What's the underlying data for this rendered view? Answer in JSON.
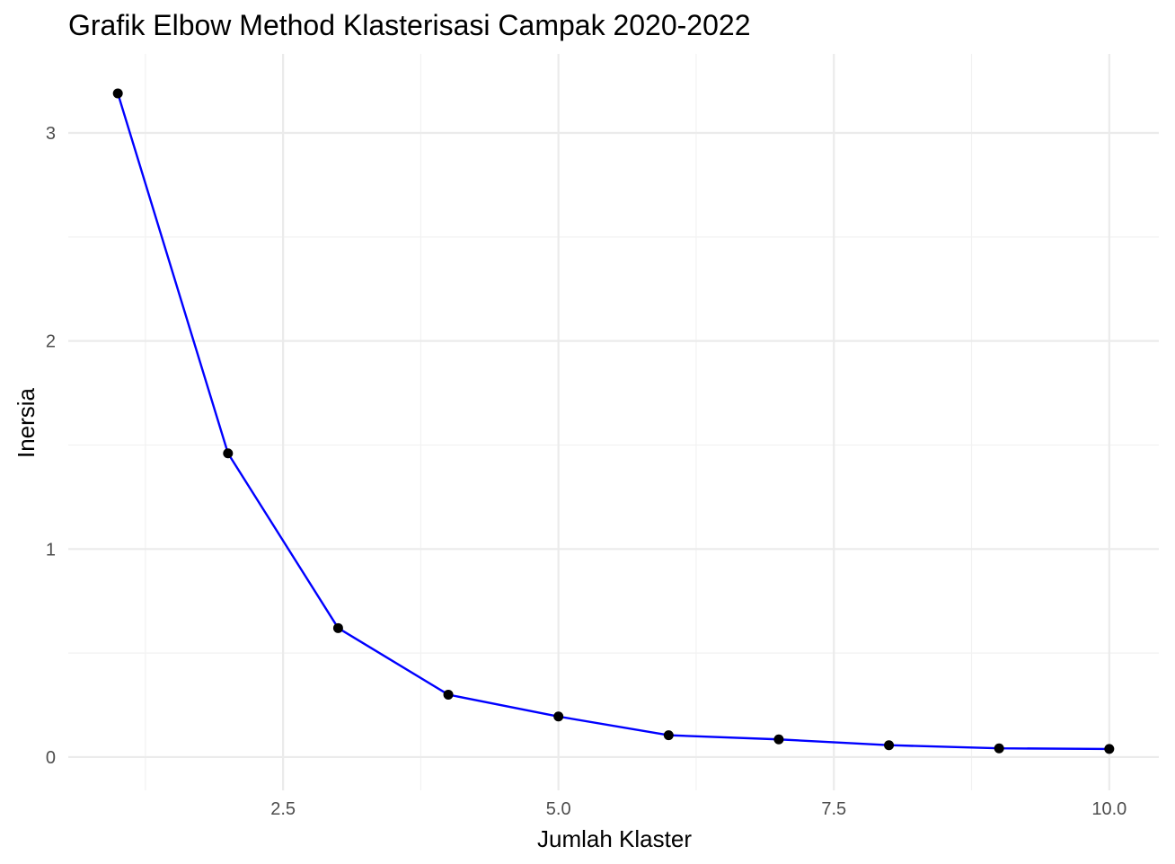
{
  "chart_data": {
    "type": "line",
    "title": "Grafik Elbow Method Klasterisasi Campak 2020-2022",
    "xlabel": "Jumlah Klaster",
    "ylabel": "Inersia",
    "xlim": [
      0.55,
      10.45
    ],
    "ylim": [
      -0.16,
      3.38
    ],
    "x_ticks": [
      2.5,
      5.0,
      7.5,
      10.0
    ],
    "x_tick_labels": [
      "2.5",
      "5.0",
      "7.5",
      "10.0"
    ],
    "x_minor_ticks": [
      1.25,
      3.75,
      6.25,
      8.75
    ],
    "y_ticks": [
      0,
      1,
      2,
      3
    ],
    "y_tick_labels": [
      "0",
      "1",
      "2",
      "3"
    ],
    "y_minor_ticks": [
      0.5,
      1.5,
      2.5
    ],
    "grid": true,
    "line_color": "#0000ff",
    "point_color": "#000000",
    "series": [
      {
        "x": [
          1,
          2,
          3,
          4,
          5,
          6,
          7,
          8,
          9,
          10
        ],
        "values": [
          3.19,
          1.46,
          0.62,
          0.3,
          0.195,
          0.105,
          0.085,
          0.057,
          0.042,
          0.039
        ]
      }
    ]
  }
}
